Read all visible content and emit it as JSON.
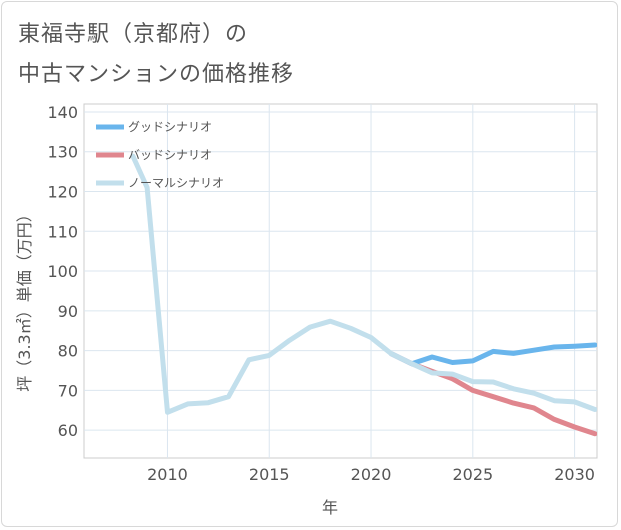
{
  "chart_data": {
    "type": "line",
    "title_line1": "東福寺駅（京都府）の",
    "title_line2": "中古マンションの価格推移",
    "xlabel": "年",
    "ylabel": "坪（3.3㎡）単価（万円）",
    "xlim": [
      2005.9,
      2031.1
    ],
    "ylim": [
      53,
      142
    ],
    "x_ticks": [
      2010,
      2015,
      2020,
      2025,
      2030
    ],
    "y_ticks": [
      60,
      70,
      80,
      90,
      100,
      110,
      120,
      130,
      140
    ],
    "series": [
      {
        "name": "グッドシナリオ",
        "color": "#69b5ec",
        "x": [
          2021,
          2022,
          2023,
          2024,
          2025,
          2026,
          2027,
          2028,
          2029,
          2030,
          2031
        ],
        "values": [
          79.2,
          76.7,
          78.4,
          77.0,
          77.4,
          79.8,
          79.3,
          80.1,
          80.9,
          81.1,
          81.4
        ]
      },
      {
        "name": "バッドシナリオ",
        "color": "#e0868e",
        "x": [
          2021,
          2022,
          2023,
          2024,
          2025,
          2026,
          2027,
          2028,
          2029,
          2030,
          2031
        ],
        "values": [
          79.2,
          76.7,
          74.8,
          72.9,
          70.0,
          68.4,
          66.8,
          65.6,
          62.7,
          60.8,
          59.1
        ]
      },
      {
        "name": "ノーマルシナリオ",
        "color": "#c2dfec",
        "x": [
          2008.3,
          2009,
          2010,
          2011,
          2012,
          2013,
          2014,
          2015,
          2016,
          2017,
          2018,
          2019,
          2020,
          2021,
          2022,
          2023,
          2024,
          2025,
          2026,
          2027,
          2028,
          2029,
          2030,
          2031
        ],
        "values": [
          128.9,
          121.0,
          64.5,
          66.6,
          66.9,
          68.4,
          77.7,
          78.8,
          82.6,
          85.9,
          87.4,
          85.6,
          83.3,
          79.2,
          76.7,
          74.4,
          74.1,
          72.2,
          72.1,
          70.4,
          69.3,
          67.4,
          67.1,
          65.2
        ]
      }
    ]
  }
}
